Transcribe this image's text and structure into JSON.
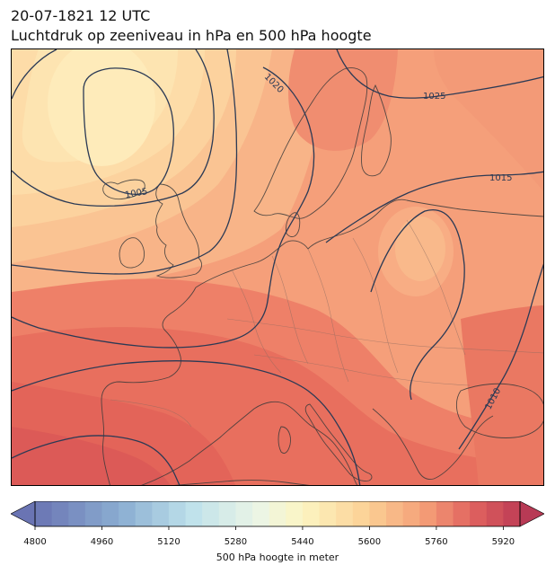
{
  "title": {
    "line1": "20-07-1821 12 UTC",
    "line2": "Luchtdruk op zeeniveau in hPa en 500 hPa hoogte"
  },
  "colorbar": {
    "label": "500 hPa hoogte in meter",
    "min": 4800,
    "max": 5960,
    "step": 40,
    "tick_labels": [
      "4800",
      "4960",
      "5120",
      "5280",
      "5440",
      "5600",
      "5760",
      "5920"
    ],
    "extend": "both"
  },
  "isobar_labels": [
    {
      "text": "1020",
      "value": 1020
    },
    {
      "text": "1025",
      "value": 1025
    },
    {
      "text": "1005",
      "value": 1005
    },
    {
      "text": "1015",
      "value": 1015
    },
    {
      "text": "1010",
      "value": 1010
    }
  ],
  "colors": {
    "isobar": "#2b3a55",
    "coastline": "#3a3a3a",
    "border": "#8a6a60"
  }
}
